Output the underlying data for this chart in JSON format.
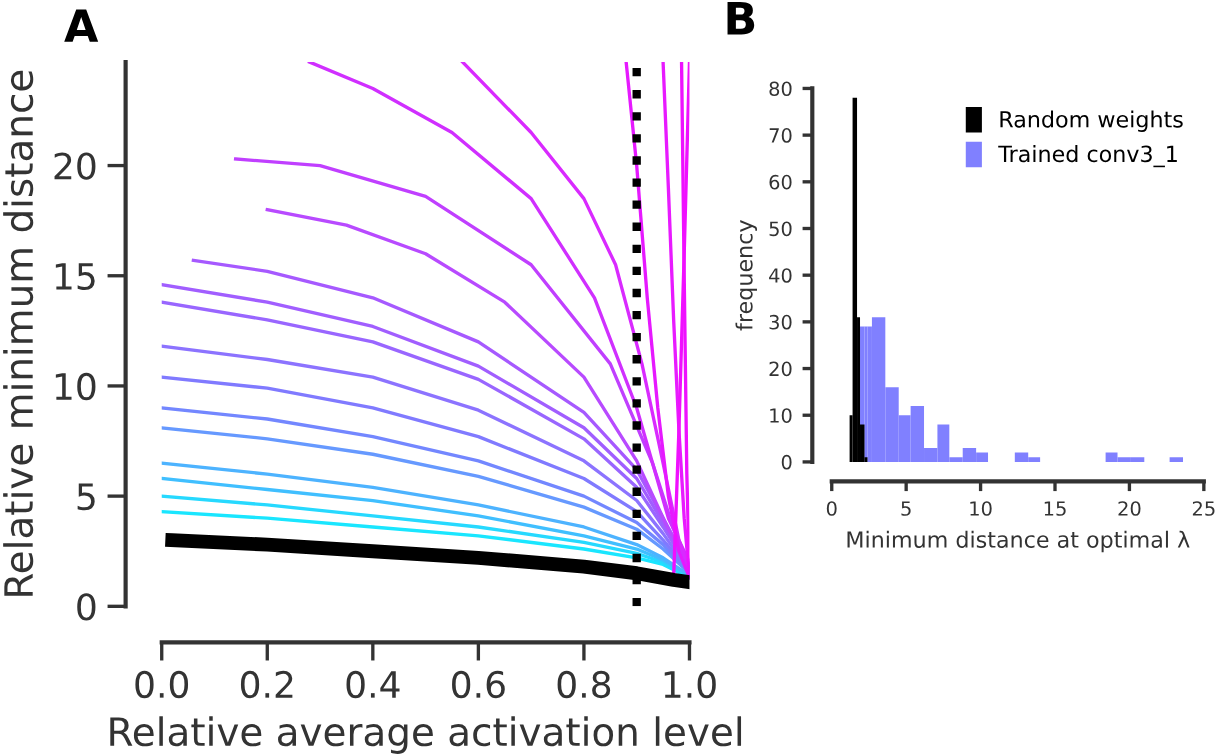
{
  "chart_data": [
    {
      "type": "line",
      "title": "A",
      "xlabel": "Relative average activation level",
      "ylabel": "Relative minimum distance",
      "xlim": [
        0,
        1
      ],
      "ylim": [
        0,
        24.7
      ],
      "xticks": [
        {
          "value": 0,
          "label": "0.0"
        },
        {
          "value": 0.2,
          "label": "0.2"
        },
        {
          "value": 0.4,
          "label": "0.4"
        },
        {
          "value": 0.6,
          "label": "0.6"
        },
        {
          "value": 0.8,
          "label": "0.8"
        },
        {
          "value": 1,
          "label": "1.0"
        }
      ],
      "yticks": [
        0,
        5,
        10,
        15,
        20
      ],
      "grid": false,
      "legend": false,
      "ref_lines": [
        {
          "axis": "x",
          "value": 0.9,
          "color": "#000000",
          "line_style": "dotted"
        }
      ],
      "series": [
        {
          "color": "#19e6ff",
          "x": [
            0,
            0.2,
            0.4,
            0.6,
            0.8,
            0.9,
            0.95,
            1.0
          ],
          "values": [
            4.3,
            4.0,
            3.6,
            3.2,
            2.6,
            2.2,
            1.9,
            1.3
          ]
        },
        {
          "color": "#26d9ff",
          "x": [
            0,
            0.2,
            0.4,
            0.6,
            0.8,
            0.9,
            0.95,
            1.0
          ],
          "values": [
            5.0,
            4.6,
            4.1,
            3.6,
            2.9,
            2.4,
            2.0,
            1.3
          ]
        },
        {
          "color": "#40bfff",
          "x": [
            0,
            0.2,
            0.4,
            0.6,
            0.8,
            0.9,
            0.95,
            1.0
          ],
          "values": [
            5.8,
            5.3,
            4.8,
            4.1,
            3.2,
            2.6,
            2.1,
            1.4
          ]
        },
        {
          "color": "#4db3ff",
          "x": [
            0,
            0.2,
            0.4,
            0.6,
            0.8,
            0.9,
            0.95,
            1.0
          ],
          "values": [
            6.5,
            6.0,
            5.4,
            4.6,
            3.6,
            2.8,
            2.2,
            1.4
          ]
        },
        {
          "color": "#6699ff",
          "x": [
            0,
            0.2,
            0.4,
            0.6,
            0.8,
            0.9,
            0.95,
            1.0
          ],
          "values": [
            8.1,
            7.6,
            6.9,
            5.9,
            4.5,
            3.5,
            2.6,
            1.5
          ]
        },
        {
          "color": "#7387ff",
          "x": [
            0,
            0.2,
            0.4,
            0.6,
            0.8,
            0.9,
            0.95,
            1.0
          ],
          "values": [
            9.0,
            8.5,
            7.7,
            6.6,
            5.0,
            3.8,
            2.8,
            1.5
          ]
        },
        {
          "color": "#807aff",
          "x": [
            0,
            0.2,
            0.4,
            0.6,
            0.8,
            0.9,
            0.95,
            1.0
          ],
          "values": [
            10.4,
            9.9,
            9.0,
            7.7,
            5.8,
            4.3,
            3.0,
            1.6
          ]
        },
        {
          "color": "#8c73ff",
          "x": [
            0,
            0.2,
            0.4,
            0.6,
            0.8,
            0.9,
            0.95,
            1.0
          ],
          "values": [
            11.8,
            11.2,
            10.4,
            8.9,
            6.6,
            4.8,
            3.3,
            1.6
          ]
        },
        {
          "color": "#9966ff",
          "x": [
            0,
            0.2,
            0.4,
            0.6,
            0.8,
            0.9,
            0.95,
            1.0
          ],
          "values": [
            13.8,
            13.0,
            12.0,
            10.3,
            7.6,
            5.4,
            3.6,
            1.7
          ]
        },
        {
          "color": "#a15eff",
          "x": [
            0,
            0.2,
            0.4,
            0.6,
            0.8,
            0.9,
            0.95,
            1.0
          ],
          "values": [
            14.6,
            13.8,
            12.7,
            10.9,
            8.1,
            5.8,
            3.8,
            1.7
          ]
        },
        {
          "color": "#a659ff",
          "x": [
            0.06,
            0.2,
            0.4,
            0.6,
            0.8,
            0.9,
            0.95,
            1.0
          ],
          "values": [
            15.7,
            15.2,
            14.0,
            12.0,
            8.8,
            6.2,
            4.0,
            1.8
          ]
        },
        {
          "color": "#b84aff",
          "x": [
            0.2,
            0.35,
            0.5,
            0.65,
            0.8,
            0.9,
            0.96,
            1.0
          ],
          "values": [
            18.0,
            17.3,
            16.0,
            13.8,
            10.4,
            6.6,
            3.5,
            1.9
          ]
        },
        {
          "color": "#c03fff",
          "x": [
            0.14,
            0.3,
            0.5,
            0.7,
            0.85,
            0.93,
            0.97,
            1.0
          ],
          "values": [
            20.3,
            20.0,
            18.6,
            15.5,
            11.0,
            6.5,
            3.5,
            1.8
          ]
        },
        {
          "color": "#d02fff",
          "x": [
            0.28,
            0.4,
            0.55,
            0.7,
            0.82,
            0.9,
            0.96,
            1.0
          ],
          "values": [
            24.7,
            23.5,
            21.5,
            18.5,
            14.0,
            9.0,
            4.0,
            2.0
          ]
        },
        {
          "color": "#d92aff",
          "x": [
            0.57,
            0.7,
            0.8,
            0.86,
            0.91,
            0.95,
            0.98,
            1.0
          ],
          "values": [
            24.7,
            21.5,
            18.5,
            15.5,
            11.0,
            6.5,
            3.0,
            1.7
          ]
        },
        {
          "color": "#e619ff",
          "x": [
            0.88,
            0.9,
            0.92,
            0.94,
            0.96,
            0.98,
            1.0
          ],
          "values": [
            24.7,
            20.0,
            14.0,
            9.0,
            5.0,
            2.5,
            1.3
          ]
        },
        {
          "color": "#e81aff",
          "x": [
            0.95,
            0.96,
            0.97,
            0.98,
            0.99,
            1.0
          ],
          "values": [
            24.7,
            19.0,
            13.0,
            8.0,
            4.0,
            1.3
          ]
        },
        {
          "color": "#ee11ff",
          "x": [
            0.985,
            0.99,
            0.995,
            1.0
          ],
          "values": [
            24.7,
            15.0,
            6.0,
            1.3
          ]
        },
        {
          "color": "#f00fff",
          "x": [
            0.97,
            0.98,
            0.99,
            1.0
          ],
          "values": [
            1.3,
            8.0,
            16.0,
            24.7
          ]
        },
        {
          "color": "#000000",
          "x": [
            0.02,
            0.2,
            0.4,
            0.6,
            0.8,
            0.9,
            0.97,
            1.0
          ],
          "values": [
            3.0,
            2.8,
            2.5,
            2.2,
            1.8,
            1.5,
            1.2,
            1.1
          ]
        }
      ]
    },
    {
      "type": "histogram",
      "title": "B",
      "xlabel": "Minimum distance at optimal λ",
      "ylabel": "frequency",
      "xlim": [
        0,
        25
      ],
      "ylim": [
        0,
        80
      ],
      "xticks": [
        0,
        5,
        10,
        15,
        20,
        25
      ],
      "yticks": [
        0,
        10,
        20,
        30,
        40,
        50,
        60,
        70,
        80
      ],
      "grid": false,
      "legend": "top right",
      "bins": [
        1.2,
        1.4,
        1.7,
        1.9,
        2.2,
        2.4,
        2.7,
        3.6,
        4.5,
        5.3,
        6.2,
        7.1,
        7.9,
        8.8,
        9.7,
        10.5,
        12.3,
        13.2,
        14.0,
        18.4,
        19.2,
        20.1,
        21.0,
        22.7,
        23.6
      ],
      "series": [
        {
          "name": "Trained conv3_1",
          "color": "#8080ff",
          "values": [
            0,
            0,
            0,
            29,
            29,
            29,
            31,
            16,
            10,
            12,
            3,
            8,
            1,
            3,
            2,
            0,
            2,
            1,
            0,
            2,
            1,
            1,
            0,
            1
          ]
        },
        {
          "name": "Random weights",
          "color": "#000000",
          "values": [
            10,
            78,
            31,
            8,
            1,
            0,
            0,
            0,
            0,
            0,
            0,
            0,
            0,
            0,
            0,
            0,
            0,
            0,
            0,
            0,
            0,
            0,
            0,
            0
          ]
        }
      ]
    }
  ]
}
